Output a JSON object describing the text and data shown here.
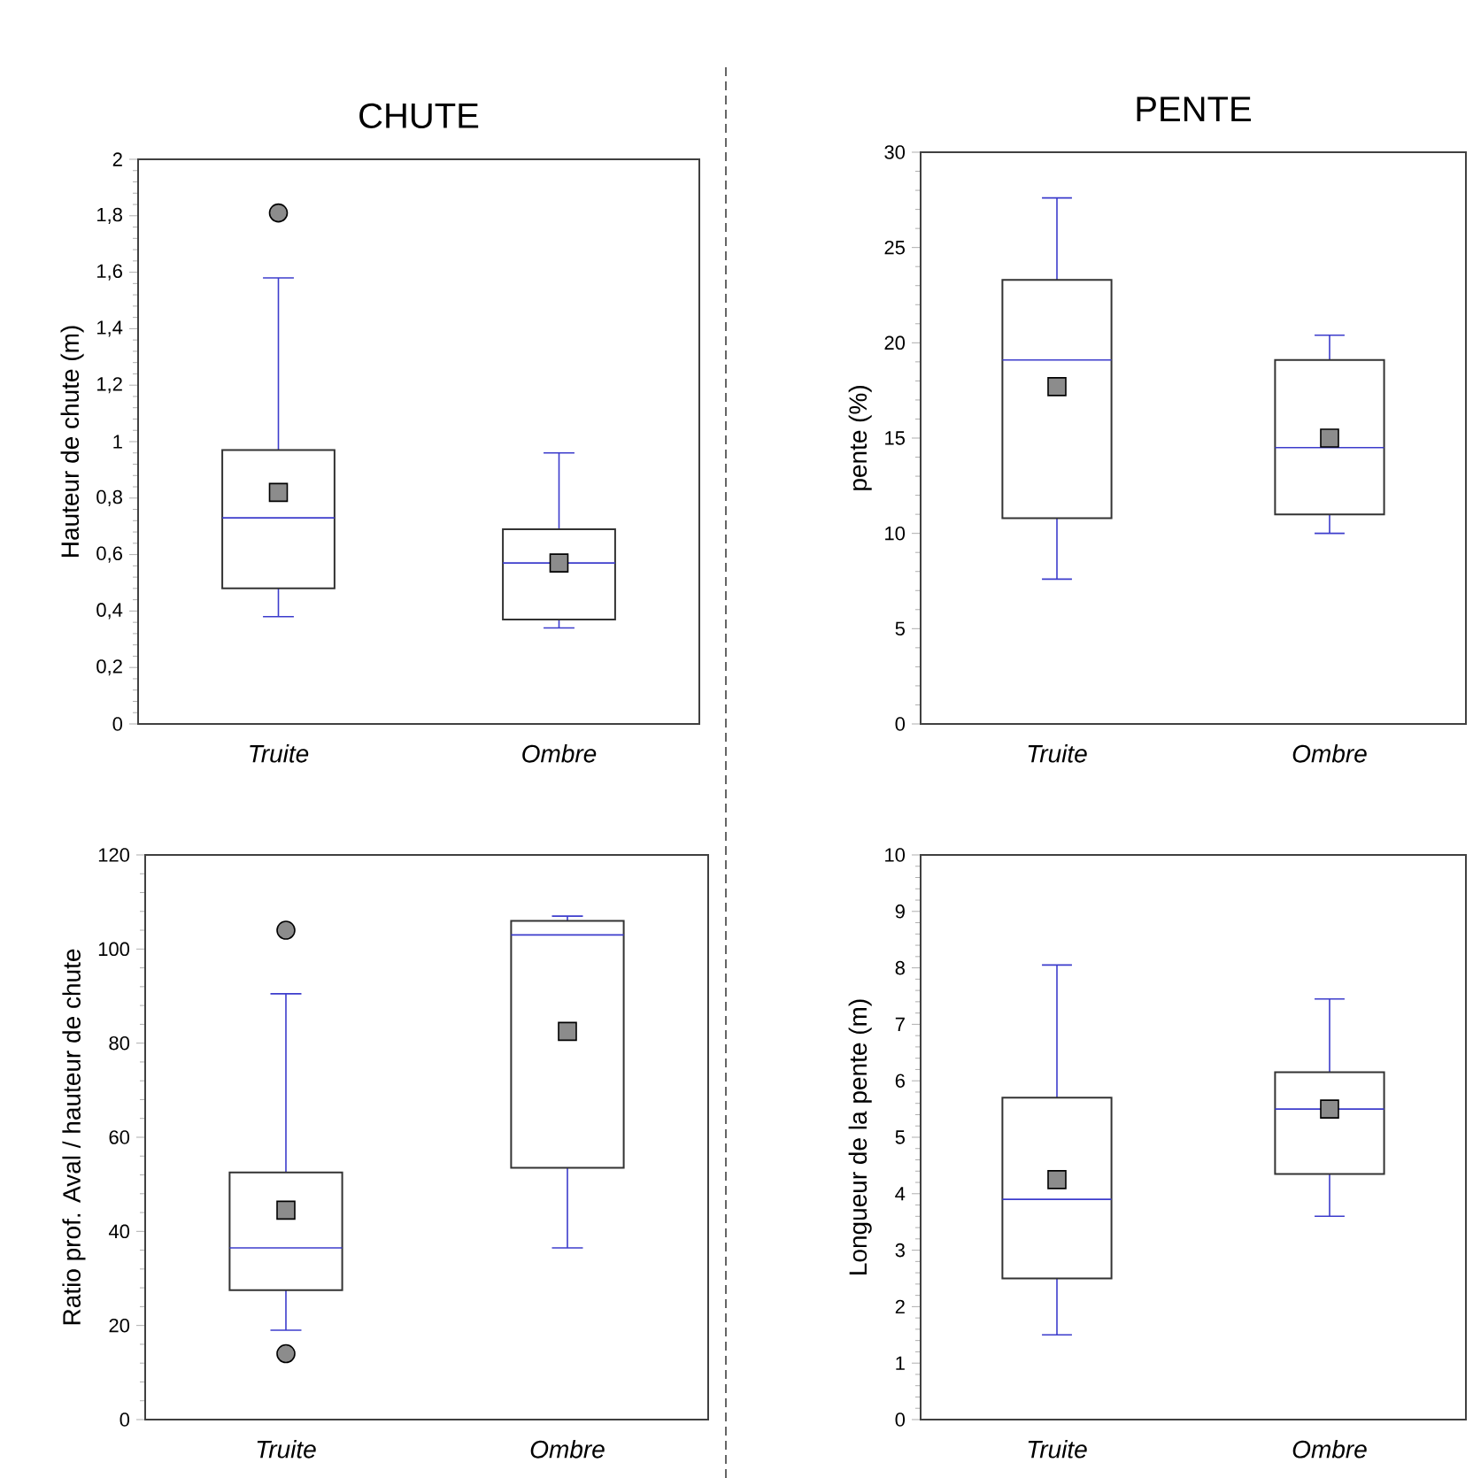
{
  "chart_data": [
    {
      "type": "box",
      "title": "CHUTE",
      "ylabel": "Hauteur de chute (m)",
      "categories": [
        "Truite",
        "Ombre"
      ],
      "color": "#333333",
      "ylim": [
        0,
        2
      ],
      "yticks": [
        0,
        {
          "value": 0.2,
          "label": "0,2"
        },
        {
          "value": 0.4,
          "label": "0,4"
        },
        {
          "value": 0.6,
          "label": "0,6"
        },
        {
          "value": 0.8,
          "label": "0,8"
        },
        1,
        {
          "value": 1.2,
          "label": "1,2"
        },
        {
          "value": 1.4,
          "label": "1,4"
        },
        {
          "value": 1.6,
          "label": "1,6"
        },
        {
          "value": 1.8,
          "label": "1,8"
        },
        2
      ],
      "boxes": [
        {
          "low": 0.38,
          "q1": 0.48,
          "median": 0.73,
          "q3": 0.97,
          "high": 1.58,
          "mean": 0.82,
          "outliers": [
            1.81
          ]
        },
        {
          "low": 0.34,
          "q1": 0.37,
          "median": 0.57,
          "q3": 0.69,
          "high": 0.96,
          "mean": 0.57
        }
      ]
    },
    {
      "type": "box",
      "title": "PENTE",
      "ylabel": "pente (%)",
      "categories": [
        "Truite",
        "Ombre"
      ],
      "color": "#333333",
      "ylim": [
        0,
        30
      ],
      "yticks": [
        0,
        5,
        10,
        15,
        20,
        25,
        30
      ],
      "boxes": [
        {
          "low": 7.6,
          "q1": 10.8,
          "median": 19.1,
          "q3": 23.3,
          "high": 27.6,
          "mean": 17.7
        },
        {
          "low": 10,
          "q1": 11,
          "median": 14.5,
          "q3": 19.1,
          "high": 20.4,
          "mean": 15
        }
      ]
    },
    {
      "type": "box",
      "ylabel": "Ratio prof. Aval / hauteur de chute",
      "categories": [
        "Truite",
        "Ombre"
      ],
      "color": "#333333",
      "ylim": [
        0,
        120
      ],
      "yticks": [
        0,
        20,
        40,
        60,
        80,
        100,
        120
      ],
      "boxes": [
        {
          "low": 19,
          "q1": 27.5,
          "median": 36.5,
          "q3": 52.5,
          "high": 90.5,
          "mean": 44.5,
          "outliers": [
            104,
            14
          ]
        },
        {
          "low": 36.5,
          "q1": 53.5,
          "median": 103,
          "q3": 106,
          "high": 107,
          "mean": 82.5
        }
      ]
    },
    {
      "type": "box",
      "ylabel": "Longueur de la pente (m)",
      "categories": [
        "Truite",
        "Ombre"
      ],
      "color": "#333333",
      "ylim": [
        0,
        10
      ],
      "yticks": [
        0,
        1,
        2,
        3,
        4,
        5,
        6,
        7,
        8,
        9,
        10
      ],
      "boxes": [
        {
          "low": 1.5,
          "q1": 2.5,
          "median": 3.9,
          "q3": 5.7,
          "high": 8.05,
          "mean": 4.25
        },
        {
          "low": 3.6,
          "q1": 4.35,
          "median": 5.5,
          "q3": 6.15,
          "high": 7.45,
          "mean": 5.5
        }
      ]
    }
  ]
}
